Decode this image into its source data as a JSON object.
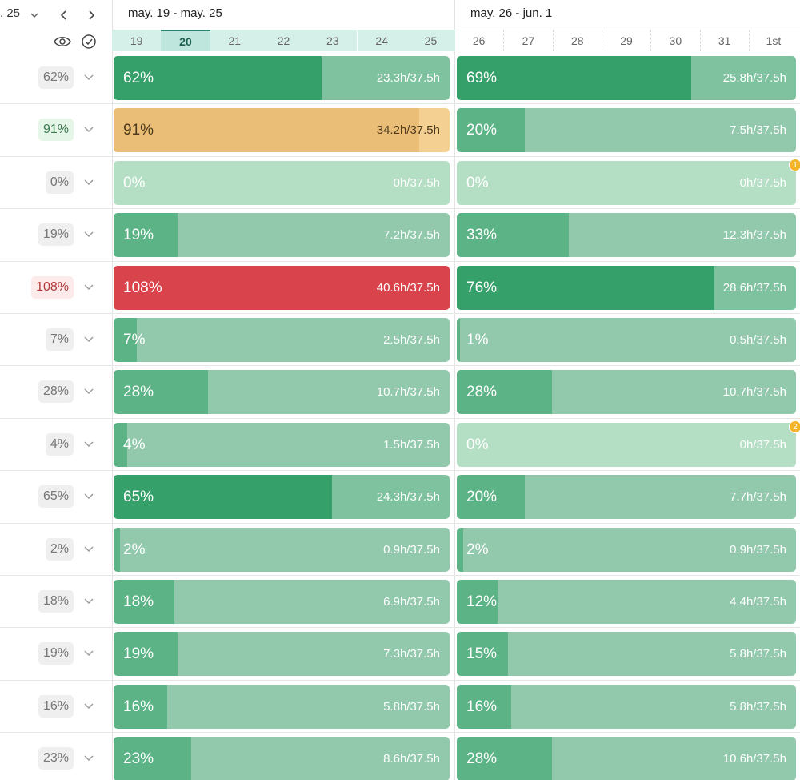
{
  "header": {
    "date_label": ". 25",
    "weeks": [
      {
        "title": "may. 19 - may. 25",
        "days": [
          "19",
          "20",
          "21",
          "22",
          "23",
          "24",
          "25"
        ],
        "current_day": 1
      },
      {
        "title": "may. 26 - jun. 1",
        "days": [
          "26",
          "27",
          "28",
          "29",
          "30",
          "31",
          "1st"
        ]
      }
    ]
  },
  "rows": [
    {
      "summary": {
        "label": "62%",
        "bg": "#efefef",
        "fg": "#777"
      },
      "cells": [
        {
          "pct": "62%",
          "hours": "23.3h/37.5h",
          "color": "#35a06a",
          "track": "#7fc29f"
        },
        {
          "pct": "69%",
          "hours": "25.8h/37.5h",
          "color": "#35a06a",
          "track": "#7fc29f"
        }
      ]
    },
    {
      "summary": {
        "label": "91%",
        "bg": "#e5f6e9",
        "fg": "#3a7a4e"
      },
      "cells": [
        {
          "pct": "91%",
          "hours": "34.2h/37.5h",
          "color": "#ebbe78",
          "track": "#f4d093",
          "text": "#4d3a1c"
        },
        {
          "pct": "20%",
          "hours": "7.5h/37.5h",
          "color": "#5bb386",
          "track": "#92c9ad"
        }
      ]
    },
    {
      "summary": {
        "label": "0%",
        "bg": "#efefef",
        "fg": "#777"
      },
      "cells": [
        {
          "pct": "0%",
          "hours": "0h/37.5h",
          "color": "#5bb386",
          "track": "#b5dfc5"
        },
        {
          "pct": "0%",
          "hours": "0h/37.5h",
          "color": "#5bb386",
          "track": "#b5dfc5",
          "badge": "1"
        }
      ]
    },
    {
      "summary": {
        "label": "19%",
        "bg": "#efefef",
        "fg": "#777"
      },
      "cells": [
        {
          "pct": "19%",
          "hours": "7.2h/37.5h",
          "color": "#5bb386",
          "track": "#92c9ad"
        },
        {
          "pct": "33%",
          "hours": "12.3h/37.5h",
          "color": "#5bb386",
          "track": "#92c9ad"
        }
      ]
    },
    {
      "summary": {
        "label": "108%",
        "bg": "#fdeaea",
        "fg": "#b03a3a"
      },
      "cells": [
        {
          "pct": "108%",
          "hours": "40.6h/37.5h",
          "color": "#d9434b",
          "track": "#e6535b"
        },
        {
          "pct": "76%",
          "hours": "28.6h/37.5h",
          "color": "#35a06a",
          "track": "#7fc29f"
        }
      ]
    },
    {
      "summary": {
        "label": "7%",
        "bg": "#efefef",
        "fg": "#777"
      },
      "cells": [
        {
          "pct": "7%",
          "hours": "2.5h/37.5h",
          "color": "#5bb386",
          "track": "#92c9ad"
        },
        {
          "pct": "1%",
          "hours": "0.5h/37.5h",
          "color": "#5bb386",
          "track": "#92c9ad"
        }
      ]
    },
    {
      "summary": {
        "label": "28%",
        "bg": "#efefef",
        "fg": "#777"
      },
      "cells": [
        {
          "pct": "28%",
          "hours": "10.7h/37.5h",
          "color": "#5bb386",
          "track": "#92c9ad"
        },
        {
          "pct": "28%",
          "hours": "10.7h/37.5h",
          "color": "#5bb386",
          "track": "#92c9ad"
        }
      ]
    },
    {
      "summary": {
        "label": "4%",
        "bg": "#efefef",
        "fg": "#777"
      },
      "cells": [
        {
          "pct": "4%",
          "hours": "1.5h/37.5h",
          "color": "#5bb386",
          "track": "#92c9ad"
        },
        {
          "pct": "0%",
          "hours": "0h/37.5h",
          "color": "#5bb386",
          "track": "#b5dfc5",
          "badge": "2"
        }
      ]
    },
    {
      "summary": {
        "label": "65%",
        "bg": "#efefef",
        "fg": "#777"
      },
      "cells": [
        {
          "pct": "65%",
          "hours": "24.3h/37.5h",
          "color": "#35a06a",
          "track": "#7fc29f"
        },
        {
          "pct": "20%",
          "hours": "7.7h/37.5h",
          "color": "#5bb386",
          "track": "#92c9ad"
        }
      ]
    },
    {
      "summary": {
        "label": "2%",
        "bg": "#efefef",
        "fg": "#777"
      },
      "cells": [
        {
          "pct": "2%",
          "hours": "0.9h/37.5h",
          "color": "#5bb386",
          "track": "#92c9ad"
        },
        {
          "pct": "2%",
          "hours": "0.9h/37.5h",
          "color": "#5bb386",
          "track": "#92c9ad"
        }
      ]
    },
    {
      "summary": {
        "label": "18%",
        "bg": "#efefef",
        "fg": "#777"
      },
      "cells": [
        {
          "pct": "18%",
          "hours": "6.9h/37.5h",
          "color": "#5bb386",
          "track": "#92c9ad"
        },
        {
          "pct": "12%",
          "hours": "4.4h/37.5h",
          "color": "#5bb386",
          "track": "#92c9ad"
        }
      ]
    },
    {
      "summary": {
        "label": "19%",
        "bg": "#efefef",
        "fg": "#777"
      },
      "cells": [
        {
          "pct": "19%",
          "hours": "7.3h/37.5h",
          "color": "#5bb386",
          "track": "#92c9ad"
        },
        {
          "pct": "15%",
          "hours": "5.8h/37.5h",
          "color": "#5bb386",
          "track": "#92c9ad"
        }
      ]
    },
    {
      "summary": {
        "label": "16%",
        "bg": "#efefef",
        "fg": "#777"
      },
      "cells": [
        {
          "pct": "16%",
          "hours": "5.8h/37.5h",
          "color": "#5bb386",
          "track": "#92c9ad"
        },
        {
          "pct": "16%",
          "hours": "5.8h/37.5h",
          "color": "#5bb386",
          "track": "#92c9ad"
        }
      ]
    },
    {
      "summary": {
        "label": "23%",
        "bg": "#efefef",
        "fg": "#777"
      },
      "cells": [
        {
          "pct": "23%",
          "hours": "8.6h/37.5h",
          "color": "#5bb386",
          "track": "#92c9ad"
        },
        {
          "pct": "28%",
          "hours": "10.6h/37.5h",
          "color": "#5bb386",
          "track": "#92c9ad"
        }
      ]
    }
  ]
}
